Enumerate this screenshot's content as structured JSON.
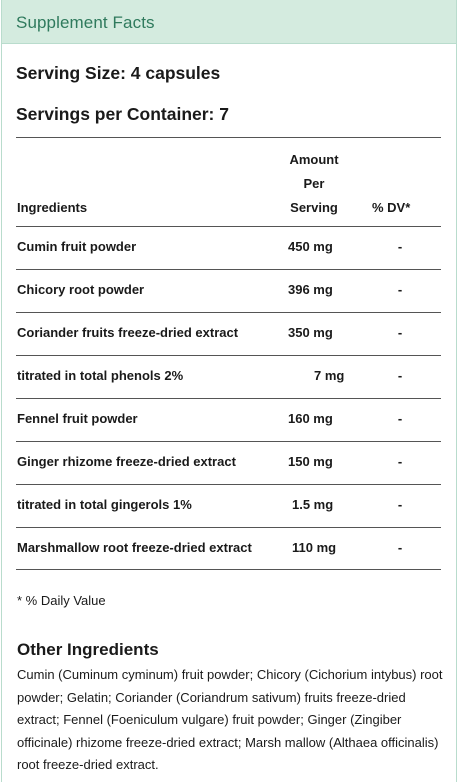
{
  "header": {
    "title": "Supplement Facts"
  },
  "serving": {
    "size": "Serving Size: 4 capsules",
    "per_container": "Servings per Container: 7"
  },
  "table": {
    "headers": {
      "ingredients": "Ingredients",
      "amount_line1": "Amount",
      "amount_line2": "Per",
      "amount_line3": "Serving",
      "dv": "% DV*"
    },
    "rows": [
      {
        "name": "Cumin fruit powder",
        "amount": "450 mg",
        "dv": "-"
      },
      {
        "name": "Chicory root powder",
        "amount": "396 mg",
        "dv": "-"
      },
      {
        "name": "Coriander fruits freeze-dried extract",
        "amount": "350 mg",
        "dv": "-"
      },
      {
        "name": "titrated in total phenols 2%",
        "amount": "7 mg",
        "dv": "-"
      },
      {
        "name": "Fennel fruit powder",
        "amount": "160 mg",
        "dv": "-"
      },
      {
        "name": "Ginger rhizome freeze-dried extract",
        "amount": "150 mg",
        "dv": "-"
      },
      {
        "name": "titrated in total gingerols 1%",
        "amount": "1.5 mg",
        "dv": "-"
      },
      {
        "name": "Marshmallow root freeze-dried extract",
        "amount": "110 mg",
        "dv": "-"
      }
    ]
  },
  "footnote": "* % Daily Value",
  "other": {
    "title": "Other Ingredients",
    "text": "Cumin (Cuminum cyminum) fruit powder; Chicory (Cichorium intybus) root powder; Gelatin; Coriander (Coriandrum sativum) fruits freeze-dried extract; Fennel (Foeniculum vulgare) fruit powder; Ginger (Zingiber officinale) rhizome freeze-dried extract; Marsh mallow (Althaea officinalis) root freeze-dried extract."
  },
  "colors": {
    "header_bg": "#d4ebdf",
    "header_text": "#2f7a5d",
    "border": "#b9dccd"
  }
}
